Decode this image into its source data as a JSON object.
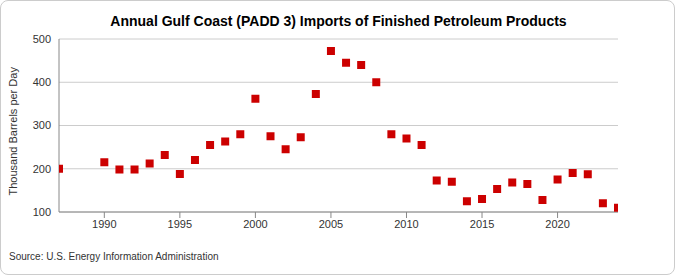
{
  "chart_data": {
    "type": "scatter",
    "title": "Annual Gulf Coast (PADD 3) Imports of Finished Petroleum Products",
    "y_label": "Thousand Barrels per Day",
    "source": "Source: U.S. Energy Information Administration",
    "x": [
      1987,
      1990,
      1991,
      1992,
      1993,
      1994,
      1995,
      1996,
      1997,
      1998,
      1999,
      2000,
      2001,
      2002,
      2003,
      2004,
      2005,
      2006,
      2007,
      2008,
      2009,
      2010,
      2011,
      2012,
      2013,
      2014,
      2015,
      2016,
      2017,
      2018,
      2019,
      2020,
      2021,
      2022,
      2023,
      2024
    ],
    "values": [
      200,
      215,
      198,
      198,
      212,
      232,
      188,
      220,
      255,
      263,
      280,
      362,
      275,
      245,
      273,
      373,
      472,
      445,
      440,
      400,
      280,
      270,
      255,
      173,
      170,
      125,
      130,
      153,
      168,
      165,
      128,
      175,
      190,
      187,
      120,
      110
    ],
    "color": "#cc0000",
    "marker": "square",
    "xlim": [
      1987,
      2024
    ],
    "xticks": [
      1990,
      1995,
      2000,
      2005,
      2010,
      2015,
      2020
    ],
    "ylim": [
      100,
      500
    ],
    "yticks": [
      100,
      200,
      300,
      400,
      500
    ],
    "grid": true
  }
}
